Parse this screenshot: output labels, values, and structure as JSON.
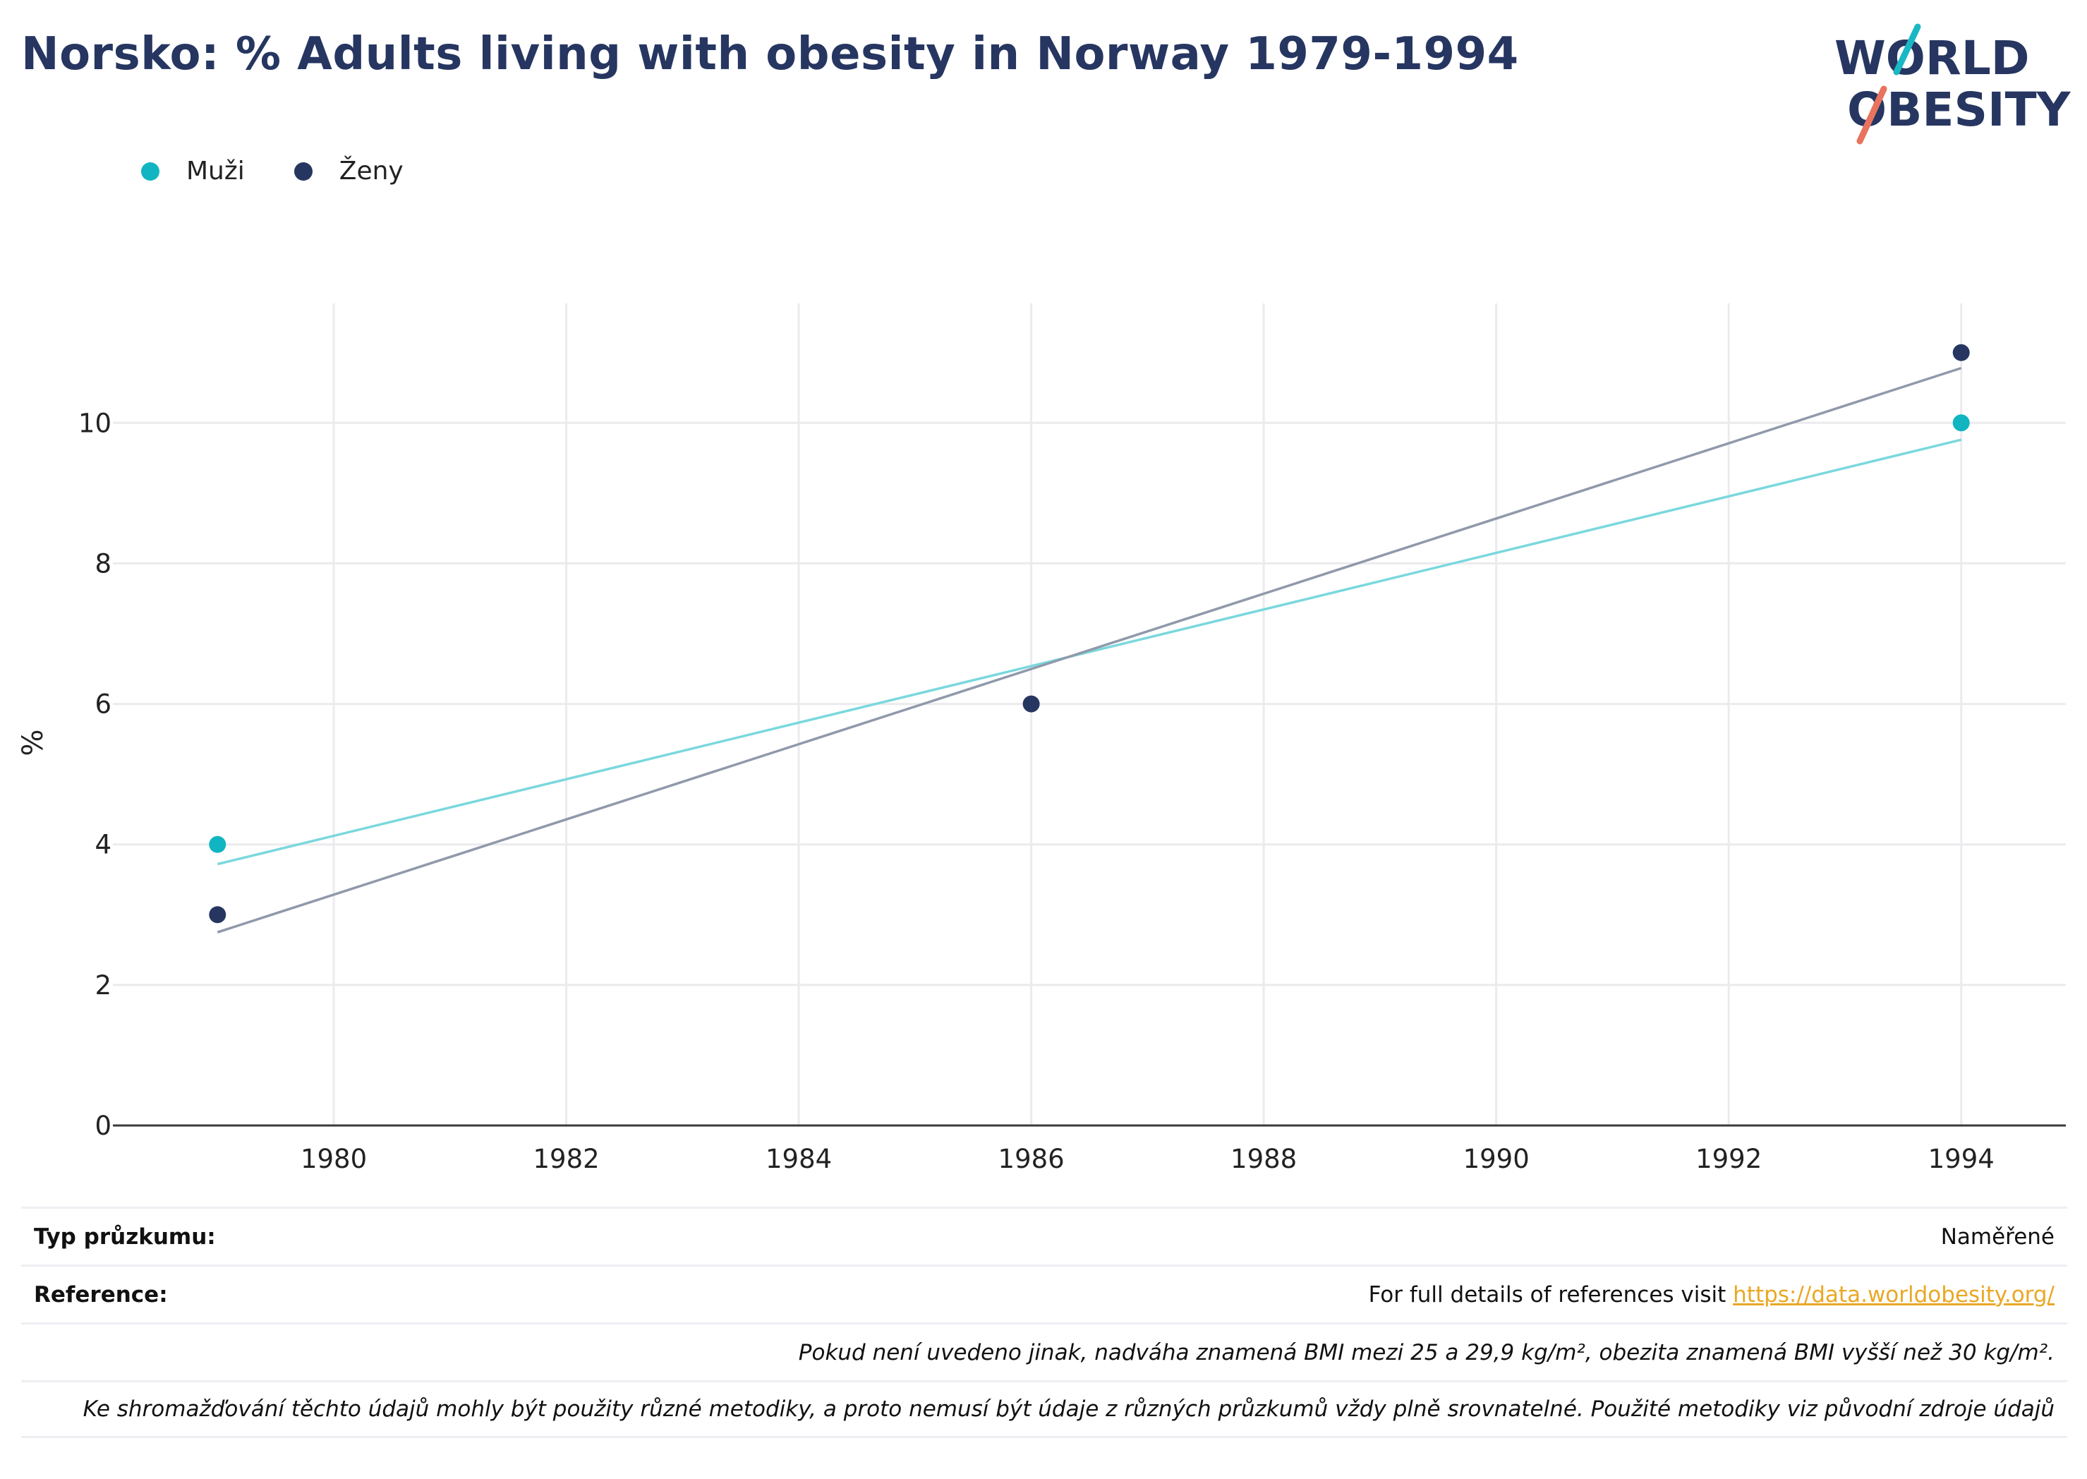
{
  "title": "Norsko: % Adults living with obesity in Norway 1979-1994",
  "logo": {
    "line1": "WORLD",
    "line2": "OBESITY",
    "color_text": "#263661",
    "color_teal": "#1ab8c4",
    "color_coral": "#e8735e"
  },
  "legend": [
    {
      "label": "Muži",
      "color": "#10b5c1"
    },
    {
      "label": "Ženy",
      "color": "#263661"
    }
  ],
  "chart_data": {
    "type": "scatter",
    "ylabel": "%",
    "xlabel": "",
    "xlim": [
      1978.1,
      1994.9
    ],
    "ylim": [
      0,
      11.7
    ],
    "x_ticks": [
      1980,
      1982,
      1984,
      1986,
      1988,
      1990,
      1992,
      1994
    ],
    "y_ticks": [
      0,
      2,
      4,
      6,
      8,
      10
    ],
    "grid": true,
    "series": [
      {
        "name": "Muži",
        "color": "#10b5c1",
        "trend_color": "#7ad8dd",
        "points": [
          {
            "x": 1979,
            "y": 4
          },
          {
            "x": 1994,
            "y": 10
          }
        ],
        "trend": [
          {
            "x": 1979,
            "y": 3.72
          },
          {
            "x": 1994,
            "y": 9.76
          }
        ]
      },
      {
        "name": "Ženy",
        "color": "#263661",
        "trend_color": "#9099ab",
        "points": [
          {
            "x": 1979,
            "y": 3
          },
          {
            "x": 1986,
            "y": 6
          },
          {
            "x": 1994,
            "y": 11
          }
        ],
        "trend": [
          {
            "x": 1979,
            "y": 2.75
          },
          {
            "x": 1994,
            "y": 10.78
          }
        ]
      }
    ]
  },
  "info": {
    "survey_type_label": "Typ průzkumu:",
    "survey_type_value": "Naměřené",
    "reference_label": "Reference:",
    "reference_text": "For full details of references visit ",
    "reference_link": "https://data.worldobesity.org/",
    "note1": "Pokud není uvedeno jinak, nadváha znamená BMI mezi 25 a 29,9 kg/m², obezita znamená BMI vyšší než 30 kg/m².",
    "note2": "Ke shromažďování těchto údajů mohly být použity různé metodiky, a proto nemusí být údaje z různých průzkumů vždy plně srovnatelné. Použité metodiky viz původní zdroje údajů"
  }
}
